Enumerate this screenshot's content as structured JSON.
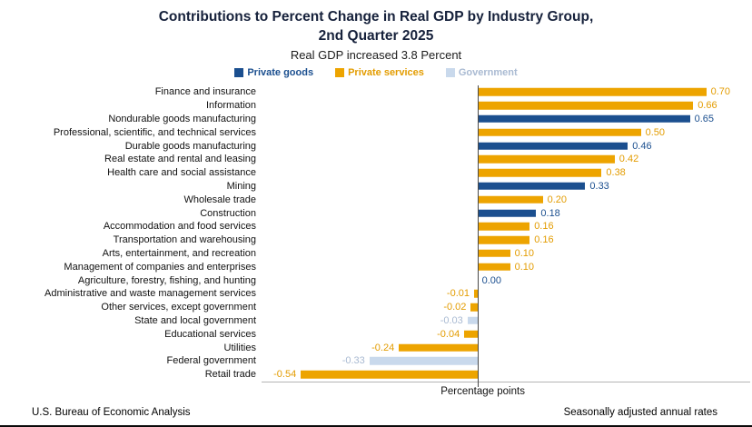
{
  "title_line1": "Contributions to Percent Change in Real GDP by Industry Group,",
  "title_line2": "2nd Quarter 2025",
  "subtitle": "Real GDP increased 3.8 Percent",
  "legend": [
    {
      "label": "Private goods",
      "color": "#1b4f8f",
      "text_color": "#1b4f8f"
    },
    {
      "label": "Private services",
      "color": "#eda400",
      "text_color": "#e39c00"
    },
    {
      "label": "Government",
      "color": "#c9d9ec",
      "text_color": "#a9bad2"
    }
  ],
  "footer": {
    "left": "U.S. Bureau of Economic Analysis",
    "right": "Seasonally adjusted annual rates"
  },
  "chart_data": {
    "type": "bar",
    "orientation": "horizontal",
    "title": "Contributions to Percent Change in Real GDP by Industry Group, 2nd Quarter 2025",
    "subtitle": "Real GDP increased 3.8 Percent",
    "xlabel": "Percentage points",
    "xlim": [
      -0.66,
      0.84
    ],
    "grid": false,
    "legend_position": "top",
    "groups": {
      "goods": {
        "name": "Private goods",
        "bar": "#1b4f8f",
        "label": "#1b4f8f"
      },
      "services": {
        "name": "Private services",
        "bar": "#eda400",
        "label": "#e39c00"
      },
      "government": {
        "name": "Government",
        "bar": "#c9d9ec",
        "label": "#a9bad2"
      }
    },
    "rows": [
      {
        "category": "Finance and insurance",
        "value": 0.7,
        "group": "services"
      },
      {
        "category": "Information",
        "value": 0.66,
        "group": "services"
      },
      {
        "category": "Nondurable goods manufacturing",
        "value": 0.65,
        "group": "goods"
      },
      {
        "category": "Professional, scientific, and technical services",
        "value": 0.5,
        "group": "services"
      },
      {
        "category": "Durable goods manufacturing",
        "value": 0.46,
        "group": "goods"
      },
      {
        "category": "Real estate and rental and leasing",
        "value": 0.42,
        "group": "services"
      },
      {
        "category": "Health care and social assistance",
        "value": 0.38,
        "group": "services"
      },
      {
        "category": "Mining",
        "value": 0.33,
        "group": "goods"
      },
      {
        "category": "Wholesale trade",
        "value": 0.2,
        "group": "services"
      },
      {
        "category": "Construction",
        "value": 0.18,
        "group": "goods"
      },
      {
        "category": "Accommodation and food services",
        "value": 0.16,
        "group": "services"
      },
      {
        "category": "Transportation and warehousing",
        "value": 0.16,
        "group": "services"
      },
      {
        "category": "Arts, entertainment, and recreation",
        "value": 0.1,
        "group": "services"
      },
      {
        "category": "Management of companies and enterprises",
        "value": 0.1,
        "group": "services"
      },
      {
        "category": "Agriculture, forestry, fishing, and hunting",
        "value": 0.0,
        "group": "goods"
      },
      {
        "category": "Administrative and waste management services",
        "value": -0.01,
        "group": "services"
      },
      {
        "category": "Other services, except government",
        "value": -0.02,
        "group": "services"
      },
      {
        "category": "State and local government",
        "value": -0.03,
        "group": "government"
      },
      {
        "category": "Educational services",
        "value": -0.04,
        "group": "services"
      },
      {
        "category": "Utilities",
        "value": -0.24,
        "group": "services"
      },
      {
        "category": "Federal government",
        "value": -0.33,
        "group": "government"
      },
      {
        "category": "Retail trade",
        "value": -0.54,
        "group": "services"
      }
    ]
  }
}
